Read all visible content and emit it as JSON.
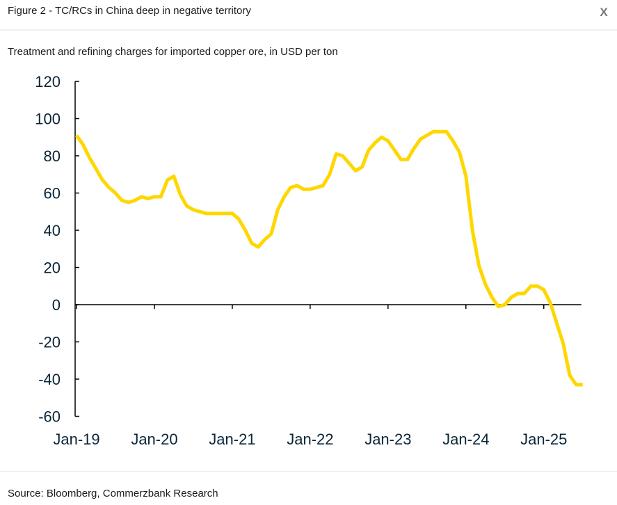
{
  "header": {
    "title": "Figure 2 - TC/RCs in China deep in negative territory",
    "close": "X"
  },
  "chart_data": {
    "type": "line",
    "subtitle": "Treatment and refining charges for imported copper ore, in USD per ton",
    "source": "Source: Bloomberg, Commerzbank Research",
    "categories": [
      "Jan-19",
      null,
      null,
      null,
      null,
      null,
      null,
      null,
      null,
      null,
      null,
      null,
      "Jan-20",
      null,
      null,
      null,
      null,
      null,
      null,
      null,
      null,
      null,
      null,
      null,
      "Jan-21",
      null,
      null,
      null,
      null,
      null,
      null,
      null,
      null,
      null,
      null,
      null,
      "Jan-22",
      null,
      null,
      null,
      null,
      null,
      null,
      null,
      null,
      null,
      null,
      null,
      "Jan-23",
      null,
      null,
      null,
      null,
      null,
      null,
      null,
      null,
      null,
      null,
      null,
      "Jan-24",
      null,
      null,
      null,
      null,
      null,
      null,
      null,
      null,
      null,
      null,
      null,
      "Jan-25",
      null,
      null,
      null,
      null,
      null,
      null
    ],
    "series": [
      {
        "name": "TC/RCs",
        "color": "#ffd700",
        "values": [
          91,
          86,
          79,
          73,
          67,
          63,
          60,
          56,
          55,
          56,
          58,
          57,
          58,
          58,
          67,
          69,
          59,
          53,
          51,
          50,
          49,
          49,
          49,
          49,
          49,
          46,
          40,
          33,
          31,
          35,
          38,
          51,
          58,
          63,
          64,
          62,
          62,
          63,
          64,
          70,
          81,
          80,
          76,
          72,
          74,
          83,
          87,
          90,
          88,
          83,
          78,
          78,
          84,
          89,
          91,
          93,
          93,
          93,
          88,
          82,
          69,
          40,
          21,
          11,
          4,
          -1,
          0,
          4,
          6,
          6,
          10,
          10,
          8,
          1,
          -10,
          -21,
          -38,
          -43,
          -43
        ]
      }
    ],
    "ylim": [
      -60,
      120
    ],
    "yticks": [
      -60,
      -40,
      -20,
      0,
      20,
      40,
      60,
      80,
      100,
      120
    ]
  }
}
